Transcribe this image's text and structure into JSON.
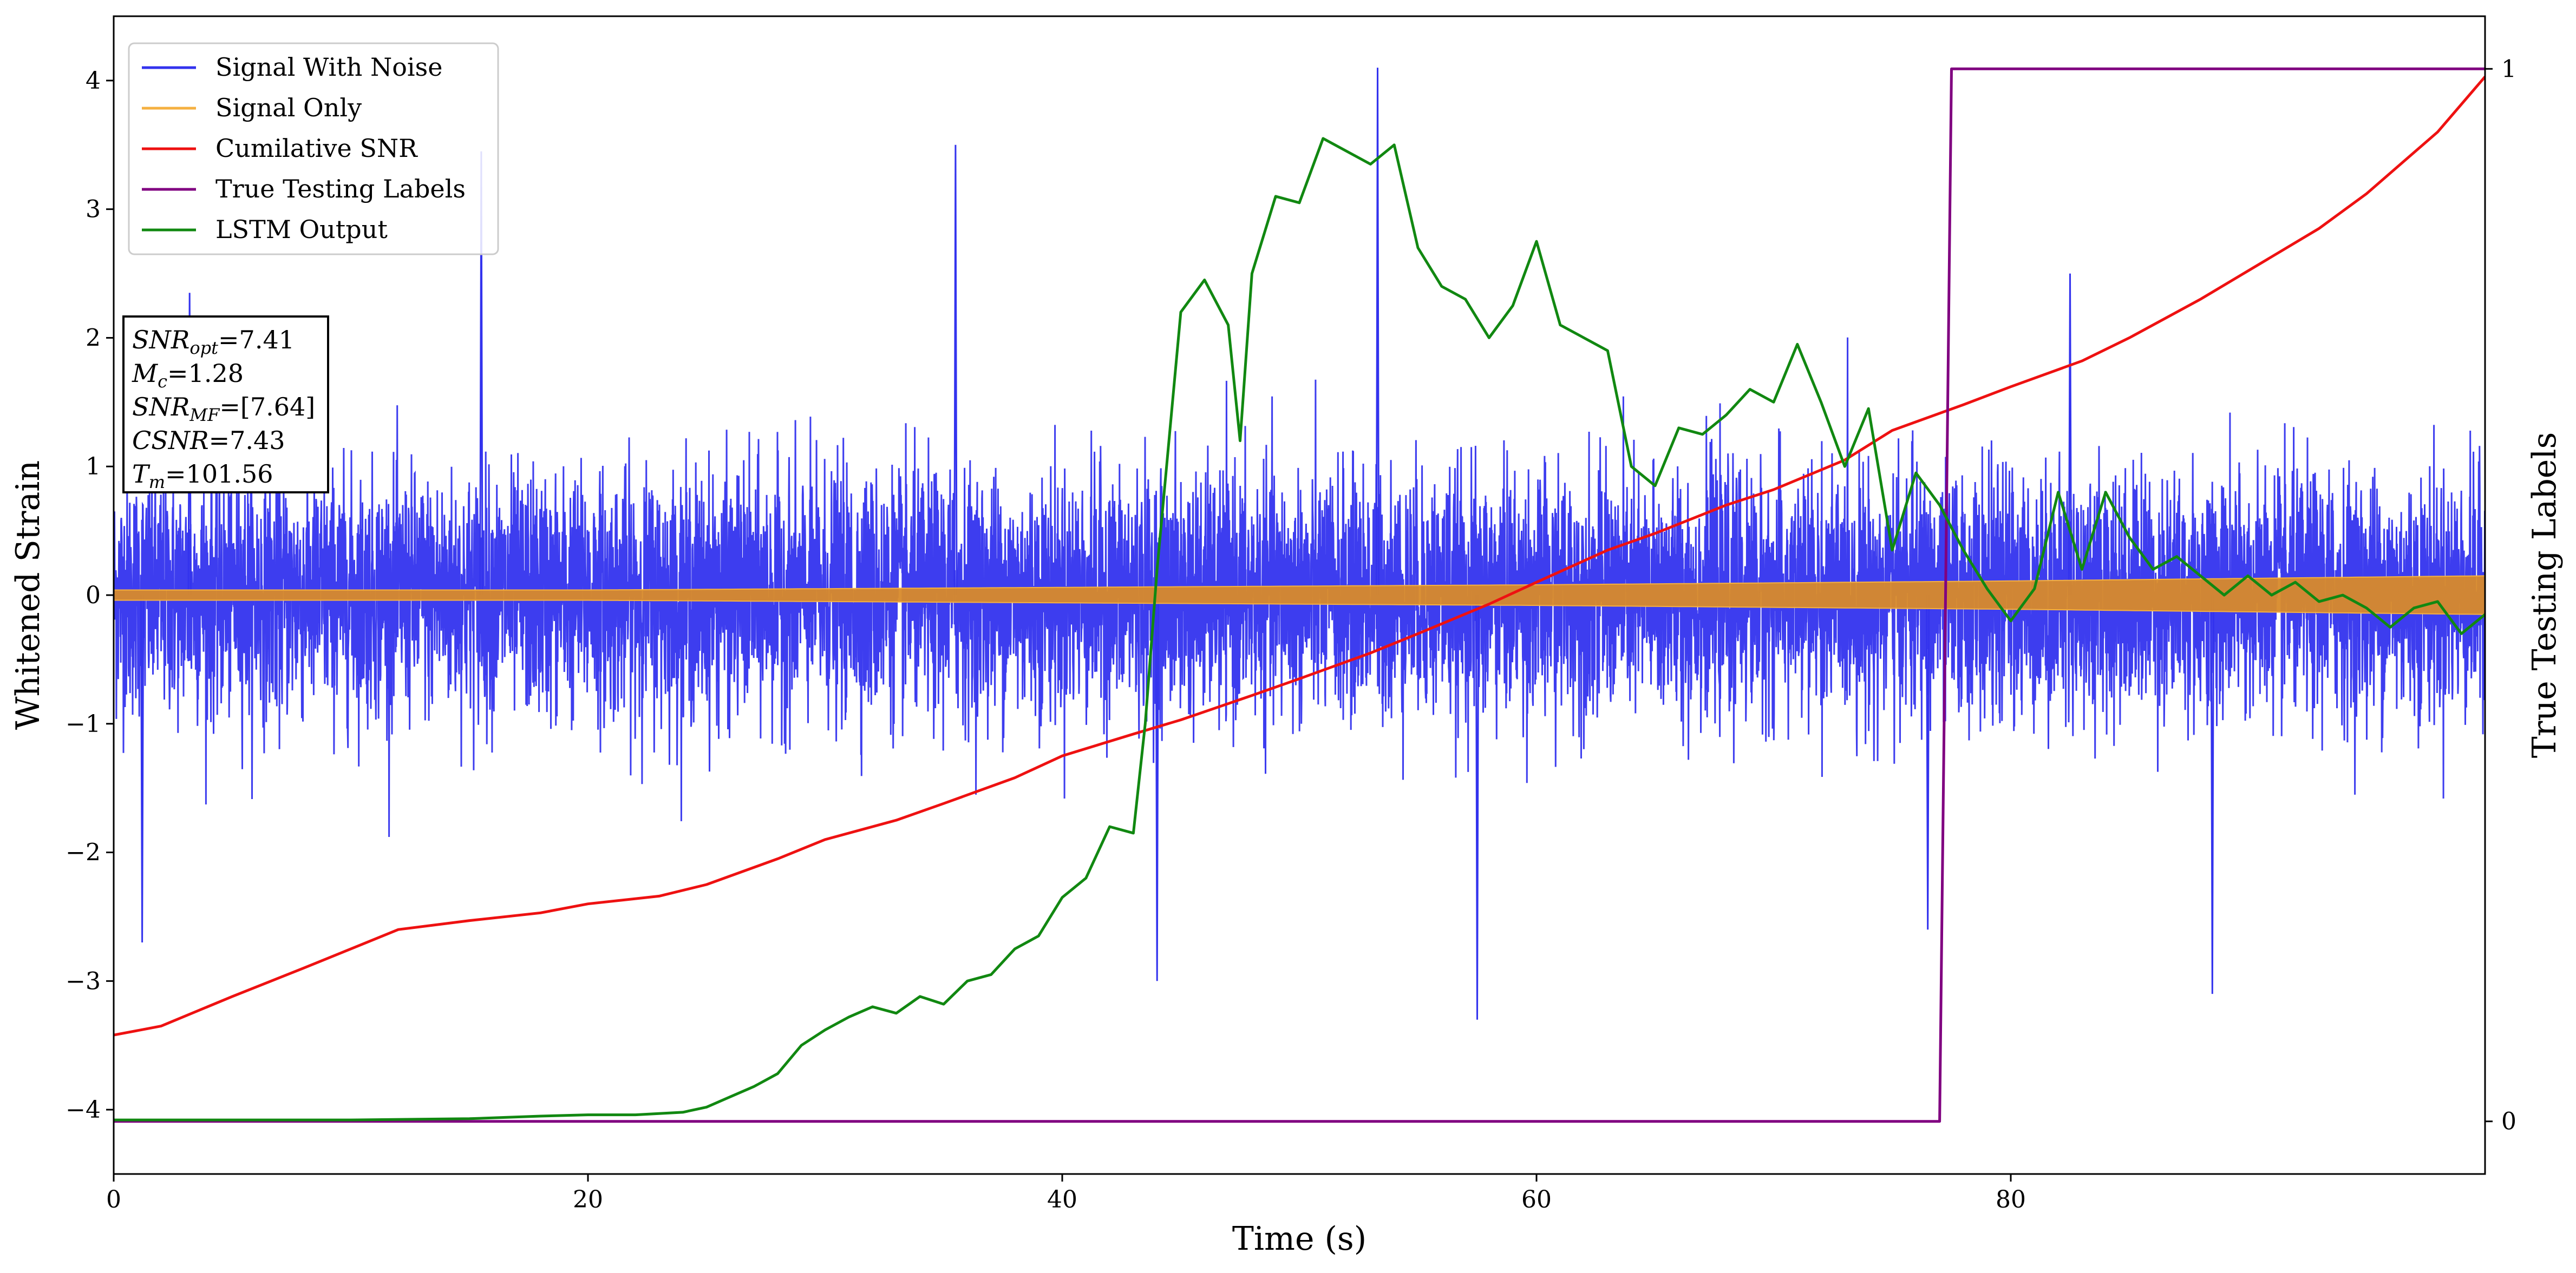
{
  "chart_data": {
    "type": "line",
    "xlabel": "Time (s)",
    "ylabel": "Whitened Strain",
    "y2label": "True Testing Labels",
    "xlim": [
      0,
      100
    ],
    "ylim": [
      -4.5,
      4.5
    ],
    "y2lim": [
      -0.05,
      1.05
    ],
    "xticks": [
      "0",
      "20",
      "40",
      "60",
      "80"
    ],
    "xtick_values": [
      0,
      20,
      40,
      60,
      80
    ],
    "yticks": [
      "−4",
      "−3",
      "−2",
      "−1",
      "0",
      "1",
      "2",
      "3",
      "4"
    ],
    "ytick_values": [
      -4,
      -3,
      -2,
      -1,
      0,
      1,
      2,
      3,
      4
    ],
    "y2ticks": [
      "0",
      "1"
    ],
    "y2tick_values": [
      0,
      1
    ],
    "legend_position": "top-left",
    "series": [
      {
        "name": "Signal With Noise",
        "color": "#3333ee",
        "axis": "left",
        "description_of_values": "white noise, approx. range -3.3 to 4.1, dense oscillation",
        "noise_amplitude": 0.85,
        "max_value": 4.1,
        "min_value": -3.3
      },
      {
        "name": "Signal Only",
        "color": "#f5b041",
        "axis": "left",
        "envelope": [
          [
            0,
            0.04
          ],
          [
            20,
            0.04
          ],
          [
            40,
            0.06
          ],
          [
            60,
            0.08
          ],
          [
            80,
            0.11
          ],
          [
            100,
            0.15
          ]
        ]
      },
      {
        "name": "Cumilative SNR",
        "color": "#ee1111",
        "axis": "left",
        "x": [
          0,
          2,
          5,
          8,
          10,
          12,
          15,
          18,
          20,
          23,
          25,
          28,
          30,
          33,
          35,
          38,
          40,
          43,
          45,
          48,
          50,
          53,
          55,
          58,
          60,
          63,
          65,
          68,
          70,
          73,
          75,
          78,
          80,
          83,
          85,
          88,
          90,
          93,
          95,
          98,
          100
        ],
        "y": [
          -3.42,
          -3.35,
          -3.12,
          -2.9,
          -2.75,
          -2.6,
          -2.53,
          -2.47,
          -2.4,
          -2.34,
          -2.25,
          -2.05,
          -1.9,
          -1.75,
          -1.62,
          -1.42,
          -1.25,
          -1.08,
          -0.97,
          -0.78,
          -0.65,
          -0.45,
          -0.3,
          -0.07,
          0.1,
          0.35,
          0.48,
          0.7,
          0.82,
          1.05,
          1.28,
          1.48,
          1.62,
          1.82,
          2.0,
          2.3,
          2.52,
          2.85,
          3.12,
          3.6,
          4.03
        ]
      },
      {
        "name": "True Testing Labels",
        "color": "#800080",
        "axis": "right",
        "x": [
          0,
          77,
          77.5,
          100
        ],
        "y": [
          0,
          0,
          1,
          1
        ]
      },
      {
        "name": "LSTM Output",
        "color": "#118811",
        "axis": "left",
        "x": [
          0,
          10,
          15,
          18,
          20,
          22,
          24,
          25,
          26,
          27,
          28,
          29,
          30,
          31,
          32,
          33,
          34,
          35,
          36,
          37,
          38,
          39,
          40,
          41,
          42,
          43,
          43.5,
          44,
          45,
          46,
          47,
          47.5,
          48,
          49,
          50,
          51,
          52,
          53,
          54,
          55,
          56,
          57,
          58,
          59,
          60,
          61,
          62,
          63,
          64,
          65,
          66,
          67,
          68,
          69,
          70,
          71,
          72,
          73,
          74,
          75,
          76,
          77,
          78,
          79,
          80,
          81,
          82,
          83,
          84,
          85,
          86,
          87,
          88,
          89,
          90,
          91,
          92,
          93,
          94,
          95,
          96,
          97,
          98,
          99,
          100
        ],
        "y": [
          -4.08,
          -4.08,
          -4.07,
          -4.05,
          -4.04,
          -4.04,
          -4.02,
          -3.98,
          -3.9,
          -3.82,
          -3.72,
          -3.5,
          -3.38,
          -3.28,
          -3.2,
          -3.25,
          -3.12,
          -3.18,
          -3.0,
          -2.95,
          -2.75,
          -2.65,
          -2.35,
          -2.2,
          -1.8,
          -1.85,
          -1.0,
          0.2,
          2.2,
          2.45,
          2.1,
          1.2,
          2.5,
          3.1,
          3.05,
          3.55,
          3.45,
          3.35,
          3.5,
          2.7,
          2.4,
          2.3,
          2.0,
          2.25,
          2.75,
          2.1,
          2.0,
          1.9,
          1.0,
          0.85,
          1.3,
          1.25,
          1.4,
          1.6,
          1.5,
          1.95,
          1.5,
          1.0,
          1.45,
          0.35,
          0.95,
          0.7,
          0.35,
          0.05,
          -0.2,
          0.05,
          0.8,
          0.2,
          0.8,
          0.45,
          0.2,
          0.3,
          0.15,
          0.0,
          0.15,
          0.0,
          0.1,
          -0.05,
          0.0,
          -0.1,
          -0.25,
          -0.1,
          -0.05,
          -0.3,
          -0.15
        ]
      }
    ]
  },
  "legend": [
    {
      "label": "Signal With Noise",
      "color": "#3333ee"
    },
    {
      "label": "Signal Only",
      "color": "#f5b041"
    },
    {
      "label": "Cumilative SNR",
      "color": "#ee1111"
    },
    {
      "label": "True Testing Labels",
      "color": "#800080"
    },
    {
      "label": "LSTM Output",
      "color": "#118811"
    }
  ],
  "infobox": {
    "snr_opt": {
      "symbol": "SNR",
      "sub": "opt",
      "value": "=7.41"
    },
    "mc": {
      "symbol": "M",
      "sub": "c",
      "value": "=1.28"
    },
    "snr_mf": {
      "symbol": "SNR",
      "sub": "MF",
      "value": "=[7.64]"
    },
    "csnr": {
      "symbol": "CSNR",
      "sub": "",
      "value": "=7.43"
    },
    "tm": {
      "symbol": "T",
      "sub": "m",
      "value": "=101.56"
    }
  }
}
